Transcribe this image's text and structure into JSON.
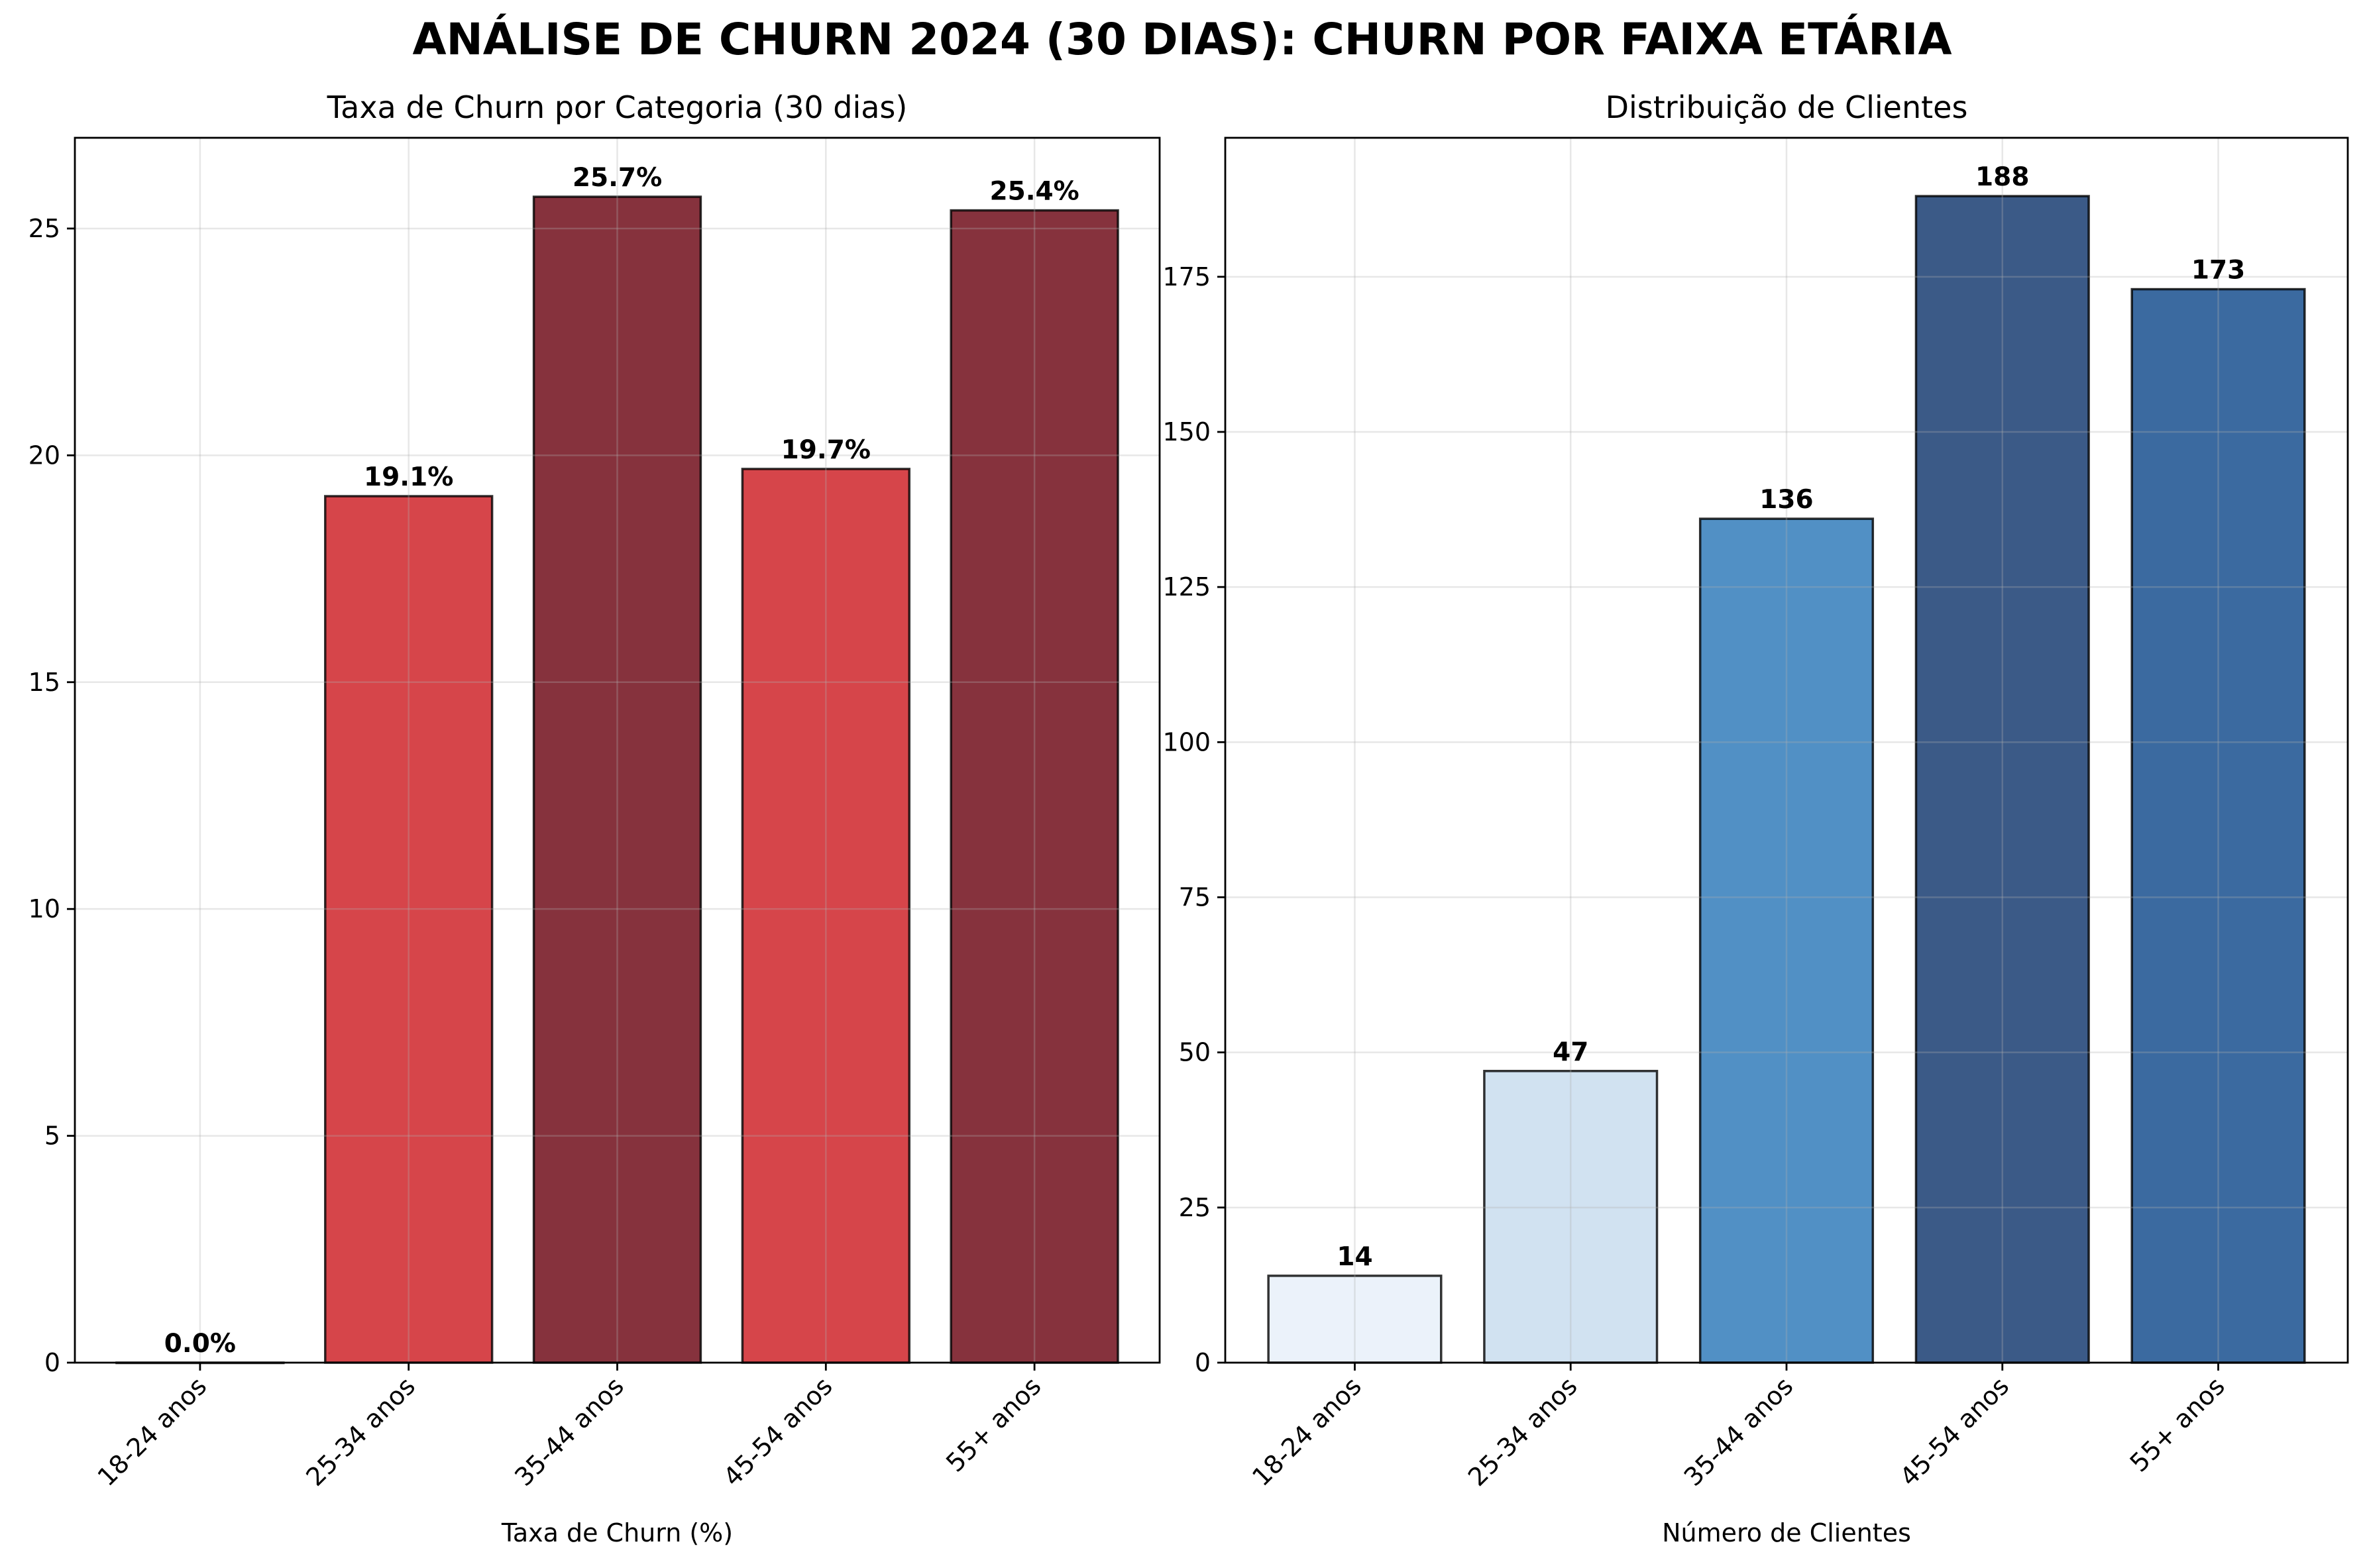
{
  "title": "ANÁLISE DE CHURN 2024 (30 DIAS): CHURN POR FAIXA ETÁRIA",
  "chart_data": [
    {
      "type": "bar",
      "title": "Taxa de Churn por Categoria (30 dias)",
      "xlabel": "Taxa de Churn (%)",
      "ylabel": "",
      "categories": [
        "18-24 anos",
        "25-34 anos",
        "35-44 anos",
        "45-54 anos",
        "55+ anos"
      ],
      "values": [
        0.0,
        19.1,
        25.7,
        19.7,
        25.4
      ],
      "value_labels": [
        "0.0%",
        "19.1%",
        "25.7%",
        "19.7%",
        "25.4%"
      ],
      "colors": [
        "#d6454a",
        "#d6454a",
        "#86323d",
        "#d6454a",
        "#86323d"
      ],
      "ylim": [
        0,
        27
      ],
      "yticks": [
        0,
        5,
        10,
        15,
        20,
        25
      ],
      "grid": true
    },
    {
      "type": "bar",
      "title": "Distribuição de Clientes",
      "xlabel": "Número de Clientes",
      "ylabel": "",
      "categories": [
        "18-24 anos",
        "25-34 anos",
        "35-44 anos",
        "45-54 anos",
        "55+ anos"
      ],
      "values": [
        14,
        47,
        136,
        188,
        173
      ],
      "value_labels": [
        "14",
        "47",
        "136",
        "188",
        "173"
      ],
      "colors": [
        "#ebf2fa",
        "#d1e2f1",
        "#5190c5",
        "#3b5a87",
        "#3b6aa0"
      ],
      "ylim": [
        0,
        197.4
      ],
      "yticks": [
        0,
        25,
        50,
        75,
        100,
        125,
        150,
        175
      ],
      "grid": true
    }
  ]
}
